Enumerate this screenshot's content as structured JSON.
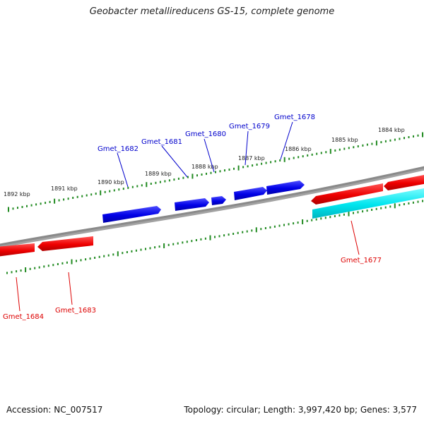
{
  "title": "Geobacter metallireducens GS-15, complete genome",
  "footer": {
    "accession": "Accession: NC_007517",
    "summary": "Topology: circular; Length: 3,997,420 bp; Genes: 3,577"
  },
  "colors": {
    "forward_gene": "#0000e0",
    "reverse_gene": "#ee0000",
    "other_feature": "#00e5ee",
    "backbone": "#808080",
    "tick": "#228b22",
    "forward_label": "#0000cc",
    "reverse_label": "#dd0000"
  },
  "ticks_top": [
    "1884 kbp",
    "1885 kbp",
    "1886 kbp",
    "1887 kbp",
    "1888 kbp",
    "1889 kbp",
    "1890 kbp",
    "1891 kbp",
    "1892 kbp"
  ],
  "genes_top": [
    "Gmet_1678",
    "Gmet_1679",
    "Gmet_1680",
    "Gmet_1681",
    "Gmet_1682"
  ],
  "genes_bottom": [
    "Gmet_1677",
    "Gmet_1683",
    "Gmet_1684"
  ]
}
